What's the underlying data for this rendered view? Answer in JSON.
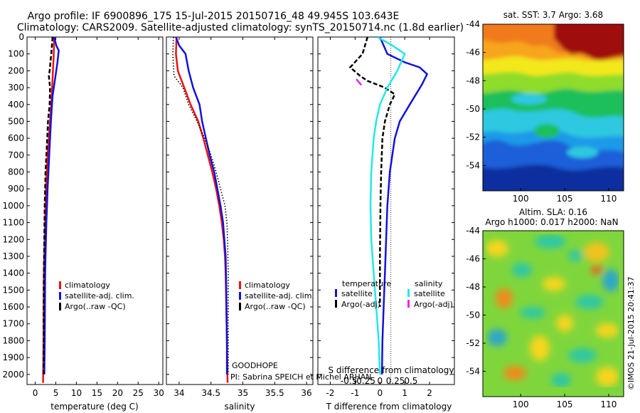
{
  "title": {
    "line1": "Argo profile: IF 6900896_175 15-Jul-2015 20150716_48 49.945S 103.643E",
    "line2": "Climatology: CARS2009. Satellite-adjusted climatology: synTS_20150714.nc (1.8d earlier)"
  },
  "colors": {
    "climatology": "#ee1111",
    "satellite_adj": "#1111dd",
    "argo": "#000000",
    "t_satellite": "#1111dd",
    "s_satellite": "#22e8e8",
    "s_argo": "#ee22ee"
  },
  "chart_data": [
    {
      "type": "line",
      "id": "temperature",
      "xlabel": "temperature (deg C)",
      "xlim": [
        -2,
        31
      ],
      "ylim": [
        2060,
        0
      ],
      "xticks": [
        0,
        5,
        10,
        15,
        20,
        25,
        30
      ],
      "yticks": [
        0,
        100,
        200,
        300,
        400,
        500,
        600,
        700,
        800,
        900,
        1000,
        1100,
        1200,
        1300,
        1400,
        1500,
        1600,
        1700,
        1800,
        1900,
        2000
      ],
      "legend": {
        "position": "lower-middle",
        "entries": [
          "climatology",
          "satellite-adj. clim.",
          "Argo(..raw -QC)"
        ]
      },
      "series": [
        {
          "name": "climatology",
          "style": "solid",
          "color_key": "climatology",
          "x": [
            4.6,
            4.5,
            4.3,
            4.1,
            3.9,
            3.6,
            3.3,
            3.0,
            2.8,
            2.6,
            2.5,
            2.4,
            2.3,
            2.2,
            2.1,
            2.05,
            2.0,
            1.9
          ],
          "y": [
            0,
            100,
            200,
            300,
            400,
            500,
            600,
            700,
            800,
            900,
            1000,
            1100,
            1200,
            1300,
            1400,
            1600,
            1800,
            2050
          ]
        },
        {
          "name": "satellite-adj. clim.",
          "style": "solid",
          "color_key": "satellite_adj",
          "x": [
            4.6,
            5.1,
            5.7,
            5.4,
            4.8,
            4.2,
            3.8,
            3.5,
            3.2,
            3.0,
            2.85,
            2.7,
            2.6,
            2.5,
            2.4,
            2.35,
            2.3,
            2.2
          ],
          "y": [
            0,
            50,
            80,
            150,
            250,
            350,
            500,
            650,
            800,
            900,
            1000,
            1100,
            1200,
            1300,
            1400,
            1600,
            1800,
            2000
          ]
        },
        {
          "name": "Argo(..raw -QC)",
          "style": "dashed",
          "color_key": "argo",
          "x": [
            4.2,
            3.9,
            3.5,
            3.3,
            3.6,
            3.5,
            3.1,
            2.9,
            2.7,
            2.5,
            2.4,
            2.3,
            2.2,
            2.1,
            2.05,
            2.0
          ],
          "y": [
            0,
            100,
            200,
            230,
            300,
            400,
            500,
            600,
            700,
            800,
            900,
            1000,
            1200,
            1400,
            1600,
            2000
          ]
        }
      ]
    },
    {
      "type": "line",
      "id": "salinity",
      "xlabel": "salinity",
      "xlim": [
        33.8,
        36.1
      ],
      "ylim": [
        2060,
        0
      ],
      "xticks": [
        34,
        34.5,
        35,
        35.5,
        36
      ],
      "legend": {
        "position": "lower-right",
        "entries": [
          "climatology",
          "satellite-adj. clim.",
          "Argo(..raw -QC)"
        ]
      },
      "annotations": [
        "GOODHOPE",
        "PI: Sabrina SPEICH et Michel ARHAN"
      ],
      "series": [
        {
          "name": "climatology",
          "style": "solid",
          "color_key": "climatology",
          "x": [
            33.96,
            33.95,
            33.98,
            34.08,
            34.18,
            34.3,
            34.38,
            34.45,
            34.52,
            34.58,
            34.63,
            34.67,
            34.7,
            34.72,
            34.73,
            34.74,
            34.75,
            34.76
          ],
          "y": [
            0,
            100,
            200,
            300,
            400,
            500,
            600,
            700,
            800,
            900,
            1000,
            1100,
            1200,
            1300,
            1400,
            1600,
            1800,
            2050
          ]
        },
        {
          "name": "satellite-adj. clim.",
          "style": "solid",
          "color_key": "satellite_adj",
          "x": [
            33.95,
            34.0,
            34.1,
            34.15,
            34.22,
            34.32,
            34.36,
            34.42,
            34.48,
            34.55,
            34.6,
            34.65,
            34.69,
            34.71,
            34.73,
            34.74,
            34.75,
            34.75
          ],
          "y": [
            0,
            50,
            100,
            200,
            300,
            400,
            500,
            600,
            700,
            800,
            900,
            1000,
            1100,
            1200,
            1300,
            1500,
            1800,
            2000
          ]
        },
        {
          "name": "Argo(..raw -QC)",
          "style": "dotted",
          "color_key": "argo",
          "x": [
            33.91,
            33.9,
            33.92,
            34.06,
            34.15,
            34.28,
            34.4,
            34.5,
            34.58,
            34.65,
            34.72,
            34.75,
            34.76,
            34.77,
            34.77,
            34.77
          ],
          "y": [
            0,
            100,
            230,
            300,
            400,
            500,
            600,
            700,
            800,
            900,
            1000,
            1100,
            1200,
            1400,
            1700,
            2000
          ]
        }
      ]
    },
    {
      "type": "line",
      "id": "differences",
      "xlabel": "T difference from climatology",
      "xlabel_top": "S difference from climatology",
      "xlim": [
        -2.5,
        3.0
      ],
      "ylim": [
        2060,
        0
      ],
      "xticks": [
        -2,
        -1,
        0,
        1,
        2
      ],
      "xticks_top_labels": [
        "-0.5",
        "-0.25",
        "0",
        "0.25",
        "0.5"
      ],
      "legend": {
        "position": "lower",
        "entries": [
          "temperature",
          "satellite",
          "Argo(-adj)",
          "salinity",
          "satellite",
          "Argo(-adj)"
        ]
      },
      "series": [
        {
          "name": "temperature satellite",
          "style": "solid",
          "color_key": "t_satellite",
          "x": [
            0.0,
            0.3,
            1.0,
            1.6,
            1.9,
            1.7,
            1.2,
            0.8,
            0.6,
            0.5,
            0.4,
            0.35,
            0.3,
            0.25,
            0.2,
            0.15,
            0.1,
            0.08
          ],
          "y": [
            0,
            100,
            150,
            180,
            220,
            280,
            400,
            500,
            600,
            700,
            800,
            900,
            1000,
            1200,
            1400,
            1600,
            1800,
            2000
          ]
        },
        {
          "name": "temperature Argo(-adj)",
          "style": "dashed",
          "color_key": "argo",
          "x": [
            -0.5,
            -0.7,
            -1.2,
            -0.8,
            -0.5,
            0.2,
            0.6,
            0.4,
            0.2,
            0.1,
            0.05,
            0.02,
            0.0,
            0.0
          ],
          "y": [
            0,
            100,
            180,
            230,
            260,
            300,
            340,
            400,
            500,
            600,
            800,
            1000,
            1300,
            1600
          ]
        },
        {
          "name": "salinity satellite",
          "style": "solid",
          "color_key": "s_satellite",
          "x": [
            -0.1,
            0.5,
            1.0,
            0.7,
            0.3,
            0.0,
            -0.15,
            -0.25,
            -0.3,
            -0.35,
            -0.38,
            -0.35,
            -0.25,
            -0.15,
            -0.05,
            0.0
          ],
          "y": [
            0,
            50,
            100,
            200,
            300,
            400,
            500,
            600,
            700,
            800,
            1000,
            1200,
            1400,
            1600,
            1800,
            2000
          ]
        },
        {
          "name": "salinity Argo(-adj)",
          "style": "solid",
          "color_key": "s_argo",
          "x": [
            -0.95,
            -0.75
          ],
          "y": [
            250,
            285
          ]
        }
      ]
    },
    {
      "type": "heatmap",
      "id": "sst",
      "title": "sat. SST: 3.7 Argo: 3.68",
      "xlim": [
        95.7,
        111.7
      ],
      "ylim": [
        -55.8,
        -44
      ],
      "xticks": [
        100,
        105,
        110
      ],
      "yticks": [
        -44,
        -46,
        -48,
        -50,
        -52,
        -54
      ],
      "colormap": "jet"
    },
    {
      "type": "heatmap",
      "id": "sla",
      "title": "Altim. SLA: 0.16",
      "subtitle": "Argo h1000: 0.017 h2000: NaN",
      "xlim": [
        95.7,
        111.7
      ],
      "ylim": [
        -55.8,
        -44
      ],
      "xticks": [
        100,
        105,
        110
      ],
      "yticks": [
        -44,
        -46,
        -48,
        -50,
        -52,
        -54
      ],
      "colormap": "jet"
    }
  ],
  "watermark": "©IMOS 21-Jul-2015 20:41:37"
}
